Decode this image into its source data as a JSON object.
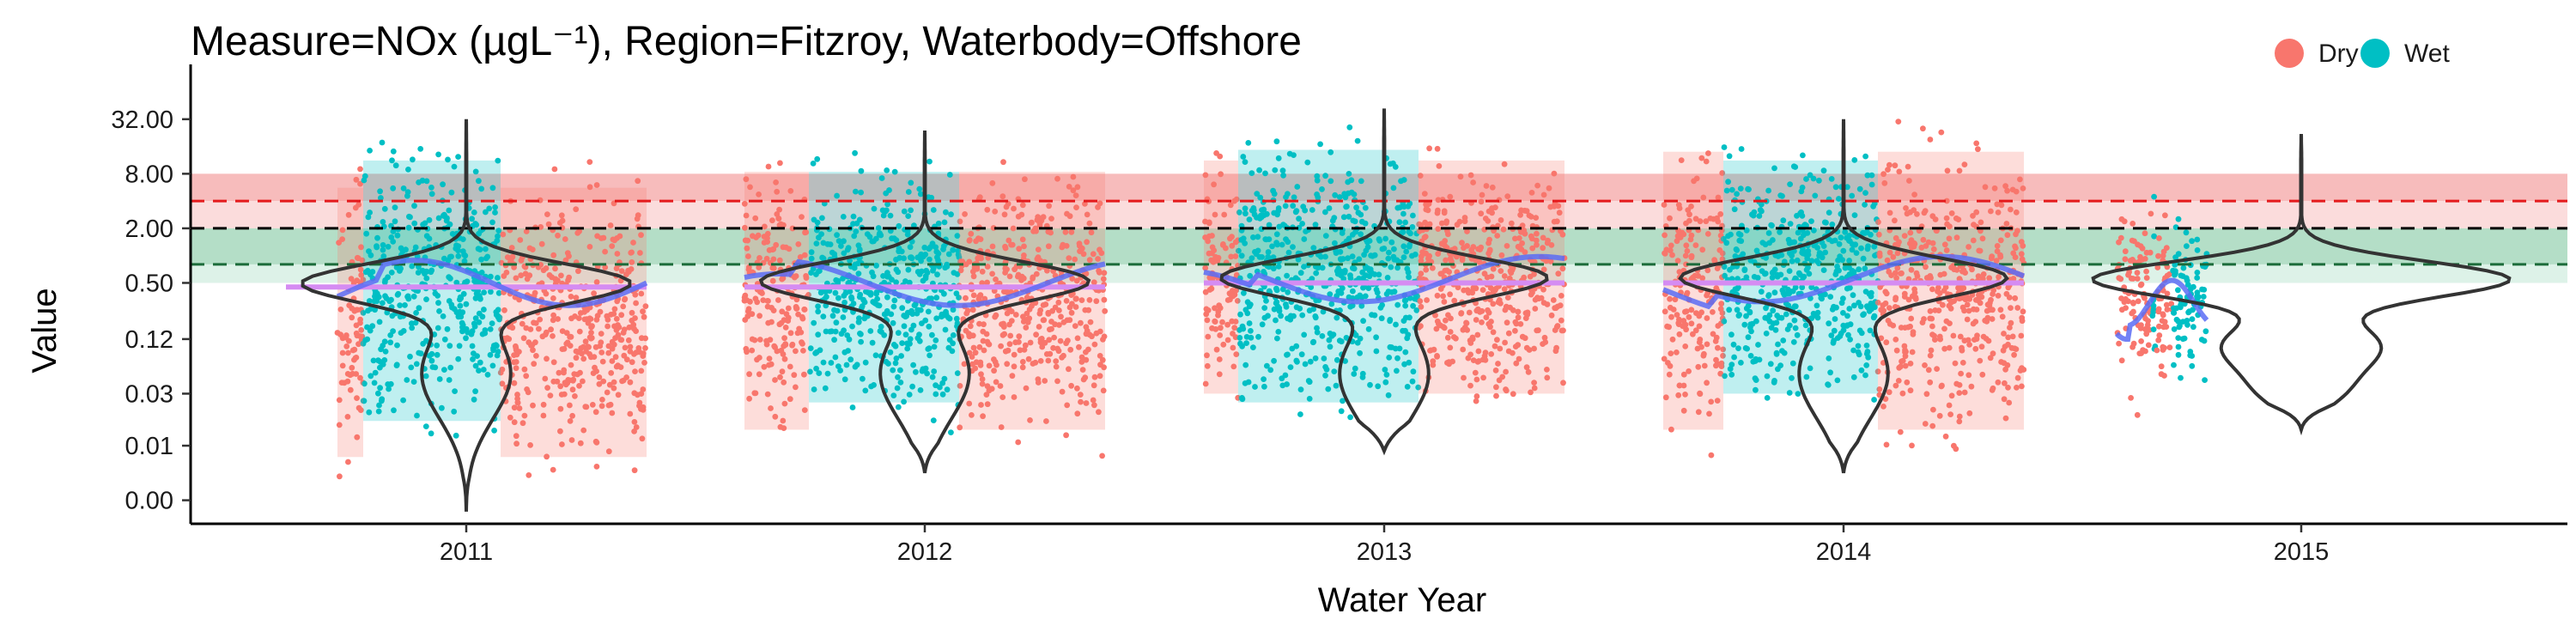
{
  "chart_data": {
    "type": "scatter",
    "title": "Measure=NOx (µgL⁻¹), Region=Fitzroy, Waterbody=Offshore",
    "xlabel": "Water Year",
    "ylabel": "Value",
    "y_scale": "log",
    "y_ticks": [
      {
        "value": 0.002,
        "label": "0.00"
      },
      {
        "value": 0.008,
        "label": "0.01"
      },
      {
        "value": 0.03,
        "label": "0.03"
      },
      {
        "value": 0.12,
        "label": "0.12"
      },
      {
        "value": 0.5,
        "label": "0.50"
      },
      {
        "value": 2,
        "label": "2.00"
      },
      {
        "value": 8,
        "label": "8.00"
      },
      {
        "value": 32,
        "label": "32.00"
      }
    ],
    "ylim": [
      0.0011,
      60
    ],
    "x_categories": [
      "2011",
      "2012",
      "2013",
      "2014",
      "2015"
    ],
    "legend": {
      "position": "top-right",
      "entries": [
        {
          "name": "Dry",
          "color": "#F8766D"
        },
        {
          "name": "Wet",
          "color": "#00BFC4"
        }
      ]
    },
    "reference_lines": [
      {
        "value": 4.0,
        "color": "#E41A1C",
        "style": "dashed"
      },
      {
        "value": 2.0,
        "color": "#000000",
        "style": "dashed"
      },
      {
        "value": 0.8,
        "color": "#1B6B3A",
        "style": "dashed"
      }
    ],
    "reference_bands": [
      {
        "from": 4.0,
        "to": 8.0,
        "color": "#F4A6A6"
      },
      {
        "from": 2.0,
        "to": 4.0,
        "color": "#F9D0D0"
      },
      {
        "from": 0.8,
        "to": 2.0,
        "color": "#9BD3B4"
      },
      {
        "from": 0.5,
        "to": 0.8,
        "color": "#D2EEE0"
      }
    ],
    "annual_median": [
      {
        "year": "2011",
        "value": 0.45
      },
      {
        "year": "2012",
        "value": 0.45
      },
      {
        "year": "2013",
        "value": 0.5
      },
      {
        "year": "2014",
        "value": 0.5
      }
    ],
    "years": [
      {
        "year": "2011",
        "wet_range": [
          0.005,
          32
        ],
        "dry_range": [
          0.002,
          16
        ],
        "wet_mean": 0.5,
        "dry_mean": 0.5,
        "violin_range": [
          0.0015,
          32
        ]
      },
      {
        "year": "2012",
        "wet_range": [
          0.008,
          24
        ],
        "dry_range": [
          0.004,
          24
        ],
        "wet_mean": 0.5,
        "dry_mean": 0.55,
        "violin_range": [
          0.004,
          24
        ]
      },
      {
        "year": "2013",
        "wet_range": [
          0.008,
          42
        ],
        "dry_range": [
          0.01,
          32
        ],
        "wet_mean": 0.55,
        "dry_mean": 0.6,
        "violin_range": [
          0.007,
          42
        ]
      },
      {
        "year": "2014",
        "wet_range": [
          0.01,
          32
        ],
        "dry_range": [
          0.004,
          40
        ],
        "wet_mean": 0.55,
        "dry_mean": 0.6,
        "violin_range": [
          0.004,
          32
        ]
      },
      {
        "year": "2015",
        "wet_range": [
          0.025,
          6
        ],
        "dry_range": [
          0.012,
          10
        ],
        "wet_mean": 0.3,
        "dry_mean": 0.3,
        "violin_range": [
          0.012,
          22
        ]
      }
    ]
  }
}
